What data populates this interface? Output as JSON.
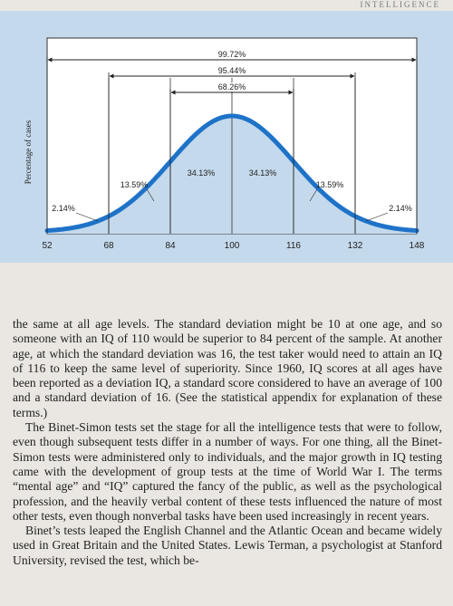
{
  "running_head": "INTELLIGENCE",
  "chart_data": {
    "type": "area",
    "distribution": "normal",
    "mean": 100,
    "sd": 16,
    "xlim": [
      52,
      148
    ],
    "ticks": [
      52,
      68,
      84,
      100,
      116,
      132,
      148
    ],
    "tick_labels": [
      "52",
      "68",
      "84",
      "100",
      "116",
      "132",
      "148"
    ],
    "ylabel": "Percentage of cases",
    "segments": [
      {
        "from": 52,
        "to": 68,
        "label": "2.14%"
      },
      {
        "from": 68,
        "to": 84,
        "label": "13.59%"
      },
      {
        "from": 84,
        "to": 100,
        "label": "34.13%"
      },
      {
        "from": 100,
        "to": 116,
        "label": "34.13%"
      },
      {
        "from": 116,
        "to": 132,
        "label": "13.59%"
      },
      {
        "from": 132,
        "to": 148,
        "label": "2.14%"
      }
    ],
    "ranges": [
      {
        "from": 52,
        "to": 148,
        "label": "99.72%"
      },
      {
        "from": 68,
        "to": 132,
        "label": "95.44%"
      },
      {
        "from": 84,
        "to": 116,
        "label": "68.26%"
      }
    ],
    "grid": false,
    "colors": {
      "background": "#c4d9ec",
      "curve": "#1e73c8",
      "text": "#222222"
    }
  },
  "body": {
    "p1": "the same at all age levels. The standard deviation might be 10 at one age, and so someone with an IQ of 110 would be superior to 84 percent of the sample. At another age, at which the standard deviation was 16, the test taker would need to attain an IQ of 116 to keep the same level of superiority. Since 1960, IQ scores at all ages have been reported as a deviation IQ, a standard score considered to have an average of 100 and a standard deviation of 16. (See the statistical appendix for explanation of these terms.)",
    "p2": "The Binet-Simon tests set the stage for all the intelligence tests that were to follow, even though subsequent tests differ in a number of ways. For one thing, all the Binet-Simon tests were administered only to individuals, and the major growth in IQ testing came with the development of group tests at the time of World War I. The terms “mental age” and “IQ” captured the fancy of the public, as well as the psychological profession, and the heavily verbal content of these tests influenced the nature of most other tests, even though nonverbal tasks have been used increasingly in recent years.",
    "p3": "Binet’s tests leaped the English Channel and the Atlantic Ocean and became widely used in Great Britain and the United States. Lewis Terman, a psychologist at Stanford University, revised the test, which be-"
  }
}
